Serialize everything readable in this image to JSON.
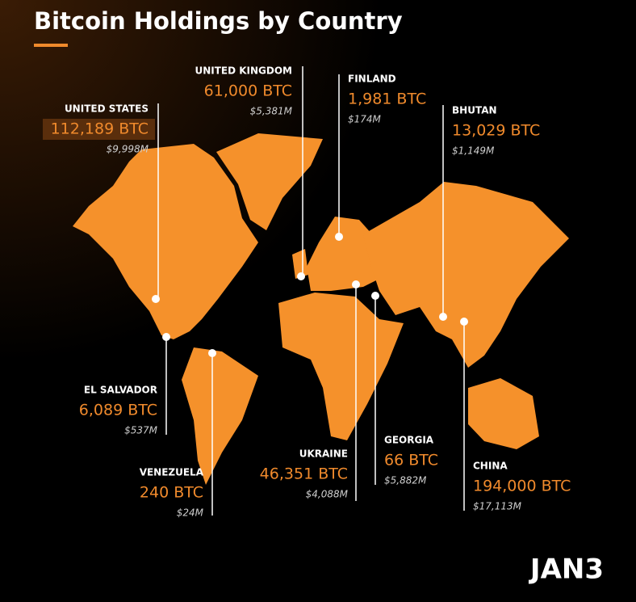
{
  "header": {
    "title": "Bitcoin Holdings by Country"
  },
  "countries": [
    {
      "name": "UNITED STATES",
      "btc": "112,189 BTC",
      "usd": "$9,998M"
    },
    {
      "name": "UNITED KINGDOM",
      "btc": "61,000 BTC",
      "usd": "$5,381M"
    },
    {
      "name": "FINLAND",
      "btc": "1,981 BTC",
      "usd": "$174M"
    },
    {
      "name": "BHUTAN",
      "btc": "13,029 BTC",
      "usd": "$1,149M"
    },
    {
      "name": "EL SALVADOR",
      "btc": "6,089 BTC",
      "usd": "$537M"
    },
    {
      "name": "VENEZUELA",
      "btc": "240 BTC",
      "usd": "$24M"
    },
    {
      "name": "UKRAINE",
      "btc": "46,351 BTC",
      "usd": "$4,088M"
    },
    {
      "name": "GEORGIA",
      "btc": "66 BTC",
      "usd": "$5,882M"
    },
    {
      "name": "CHINA",
      "btc": "194,000 BTC",
      "usd": "$17,113M"
    }
  ],
  "logo": "JAN3"
}
